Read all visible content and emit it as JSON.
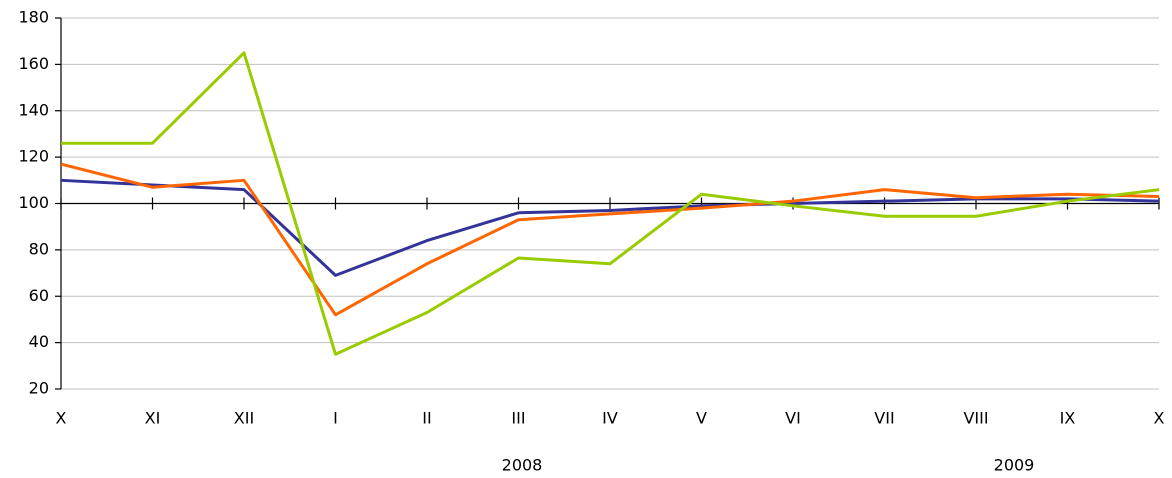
{
  "chart_data": {
    "type": "line",
    "categories": [
      "X",
      "XI",
      "XII",
      "I",
      "II",
      "III",
      "IV",
      "V",
      "VI",
      "VII",
      "VIII",
      "IX",
      "X"
    ],
    "year_labels": [
      "2008",
      "2009"
    ],
    "series": [
      {
        "color": "#333399",
        "values": [
          110,
          108,
          106,
          69,
          84,
          96,
          97,
          99,
          100,
          101,
          102,
          102,
          101
        ]
      },
      {
        "color": "#ff6600",
        "values": [
          117,
          107,
          110,
          52,
          74,
          93,
          95.5,
          98,
          101,
          106,
          102.5,
          104,
          103
        ]
      },
      {
        "color": "#99cc00",
        "values": [
          126,
          126,
          165,
          35,
          53,
          76.5,
          74,
          104,
          99,
          94.5,
          94.5,
          101,
          106
        ]
      }
    ],
    "ylim": [
      20,
      180
    ],
    "yticks": [
      20,
      40,
      60,
      80,
      100,
      120,
      140,
      160,
      180
    ],
    "x_axis_at": 100,
    "grid": true
  }
}
